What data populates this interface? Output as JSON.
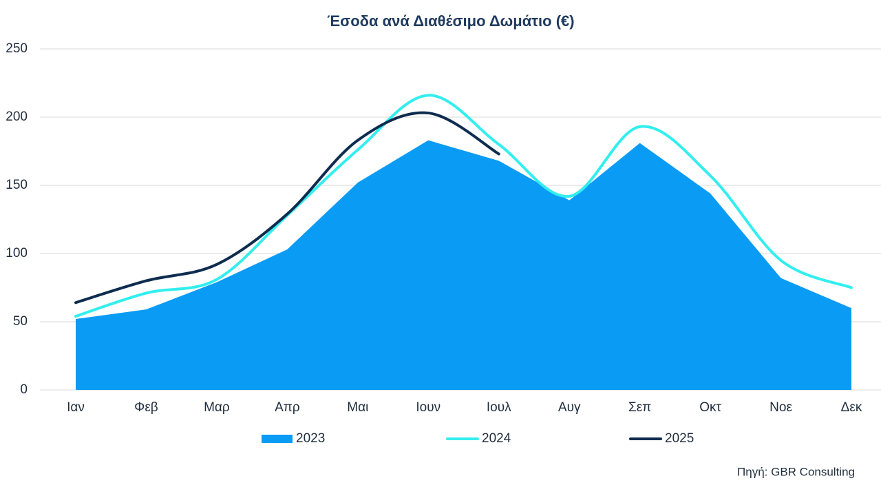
{
  "chart_data": {
    "type": "line",
    "title": "Έσοδα ανά Διαθέσιμο Δωμάτιο (€)",
    "source": "Πηγή: GBR Consulting",
    "categories": [
      "Ιαν",
      "Φεβ",
      "Μαρ",
      "Απρ",
      "Μαι",
      "Ιουν",
      "Ιουλ",
      "Αυγ",
      "Σεπ",
      "Οκτ",
      "Νοε",
      "Δεκ"
    ],
    "series": [
      {
        "name": "2023",
        "style": "area",
        "color": "#0a9bf5",
        "values": [
          52,
          59,
          79,
          103,
          152,
          183,
          168,
          139,
          181,
          144,
          82,
          60
        ]
      },
      {
        "name": "2024",
        "style": "line",
        "color": "#33eeee",
        "values": [
          54,
          71,
          81,
          128,
          176,
          216,
          180,
          142,
          193,
          157,
          95,
          75
        ]
      },
      {
        "name": "2025",
        "style": "line",
        "color": "#0d2c4f",
        "values": [
          64,
          80,
          92,
          129,
          183,
          203,
          173,
          null,
          null,
          null,
          null,
          null
        ]
      }
    ],
    "ylim": [
      0,
      250
    ],
    "yticks": [
      0,
      50,
      100,
      150,
      200,
      250
    ],
    "grid": true,
    "smooth": true,
    "legend": "bottom"
  }
}
